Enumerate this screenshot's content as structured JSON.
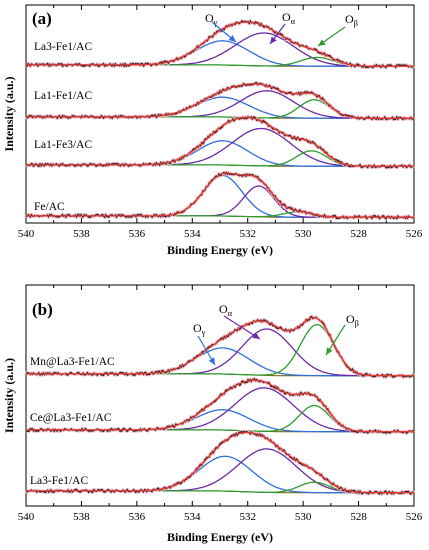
{
  "chart_data": [
    {
      "type": "line",
      "panel_label": "(a)",
      "xlabel": "Binding Energy (eV)",
      "ylabel": "Intensity (a.u.)",
      "xlim": [
        540,
        526
      ],
      "x_ticks": [
        "540",
        "538",
        "536",
        "534",
        "532",
        "530",
        "528",
        "526"
      ],
      "annotations": [
        {
          "text": "O",
          "sub": "γ",
          "points_to": 533.3,
          "color": "#2f6fd6"
        },
        {
          "text": "O",
          "sub": "α",
          "points_to": 531.0,
          "color": "#6a2aa8"
        },
        {
          "text": "O",
          "sub": "β",
          "points_to": 529.6,
          "color": "#2f9a2f"
        }
      ],
      "traces": [
        {
          "label": "La3-Fe1/AC",
          "components": [
            {
              "name": "Oγ",
              "center": 532.9,
              "width": 0.95,
              "height": 0.55
            },
            {
              "name": "Oα",
              "center": 531.4,
              "width": 1.05,
              "height": 0.75
            },
            {
              "name": "Oβ",
              "center": 529.5,
              "width": 0.6,
              "height": 0.2
            }
          ]
        },
        {
          "label": "La1-Fe1/AC",
          "components": [
            {
              "name": "Oγ",
              "center": 532.9,
              "width": 0.95,
              "height": 0.45
            },
            {
              "name": "Oα",
              "center": 531.3,
              "width": 0.95,
              "height": 0.62
            },
            {
              "name": "Oβ",
              "center": 529.6,
              "width": 0.55,
              "height": 0.42
            }
          ]
        },
        {
          "label": "La1-Fe3/AC",
          "components": [
            {
              "name": "Oγ",
              "center": 532.9,
              "width": 0.9,
              "height": 0.55
            },
            {
              "name": "Oα",
              "center": 531.5,
              "width": 1.05,
              "height": 0.85
            },
            {
              "name": "Oβ",
              "center": 529.7,
              "width": 0.55,
              "height": 0.35
            }
          ]
        },
        {
          "label": "Fe/AC",
          "components": [
            {
              "name": "Oγ",
              "center": 532.9,
              "width": 0.7,
              "height": 0.92
            },
            {
              "name": "Oα",
              "center": 531.6,
              "width": 0.55,
              "height": 0.7
            },
            {
              "name": "Oβ",
              "center": 530.2,
              "width": 0.55,
              "height": 0.12
            }
          ]
        }
      ]
    },
    {
      "type": "line",
      "panel_label": "(b)",
      "xlabel": "Binding Energy (eV)",
      "ylabel": "Intensity (a.u.)",
      "xlim": [
        540,
        526
      ],
      "x_ticks": [
        "540",
        "538",
        "536",
        "534",
        "532",
        "530",
        "528",
        "526"
      ],
      "annotations": [
        {
          "text": "O",
          "sub": "γ",
          "points_to": 532.8,
          "color": "#2f6fd6"
        },
        {
          "text": "O",
          "sub": "α",
          "points_to": 531.5,
          "color": "#6a2aa8"
        },
        {
          "text": "O",
          "sub": "β",
          "points_to": 529.8,
          "color": "#2f9a2f"
        }
      ],
      "traces": [
        {
          "label": "Mn@La3-Fe1/AC",
          "components": [
            {
              "name": "Oγ",
              "center": 532.9,
              "width": 0.95,
              "height": 0.45
            },
            {
              "name": "Oα",
              "center": 531.3,
              "width": 0.9,
              "height": 0.8
            },
            {
              "name": "Oβ",
              "center": 529.5,
              "width": 0.6,
              "height": 0.88
            }
          ]
        },
        {
          "label": "Ce@La3-Fe1/AC",
          "components": [
            {
              "name": "Oγ",
              "center": 532.9,
              "width": 0.95,
              "height": 0.35
            },
            {
              "name": "Oα",
              "center": 531.4,
              "width": 1.05,
              "height": 0.75
            },
            {
              "name": "Oβ",
              "center": 529.6,
              "width": 0.55,
              "height": 0.45
            }
          ]
        },
        {
          "label": "La3-Fe1/AC",
          "components": [
            {
              "name": "Oγ",
              "center": 532.8,
              "width": 0.95,
              "height": 0.6
            },
            {
              "name": "Oα",
              "center": 531.3,
              "width": 1.05,
              "height": 0.75
            },
            {
              "name": "Oβ",
              "center": 529.6,
              "width": 0.55,
              "height": 0.18
            }
          ]
        }
      ]
    }
  ],
  "colors": {
    "gamma": "#2f6fd6",
    "alpha": "#6a2aa8",
    "beta": "#2f9a2f",
    "fit_envelope": "#e33b2e",
    "background": "#7a6a10",
    "raw": "#1a1a1a",
    "raw_halo": "#f2b7c6"
  }
}
